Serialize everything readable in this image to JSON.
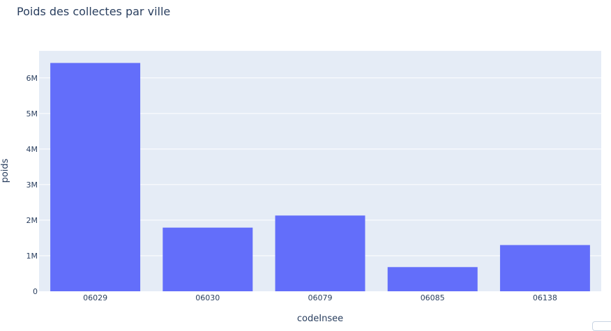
{
  "chart_data": {
    "type": "bar",
    "title": "Poids des collectes par ville",
    "xlabel": "codeInsee",
    "ylabel": "poids",
    "categories": [
      "06029",
      "06030",
      "06079",
      "06085",
      "06138"
    ],
    "values": [
      6420000,
      1790000,
      2130000,
      680000,
      1300000
    ],
    "ylim": [
      0,
      6760000
    ],
    "yticks": [
      0,
      1000000,
      2000000,
      3000000,
      4000000,
      5000000,
      6000000
    ],
    "ytick_labels": [
      "0",
      "1M",
      "2M",
      "3M",
      "4M",
      "5M",
      "6M"
    ],
    "grid": true,
    "legend": "none",
    "colors": {
      "bar": "#636efa",
      "plot_bg": "#e5ecf6",
      "grid": "#ffffff",
      "text": "#2a3f5f"
    }
  }
}
